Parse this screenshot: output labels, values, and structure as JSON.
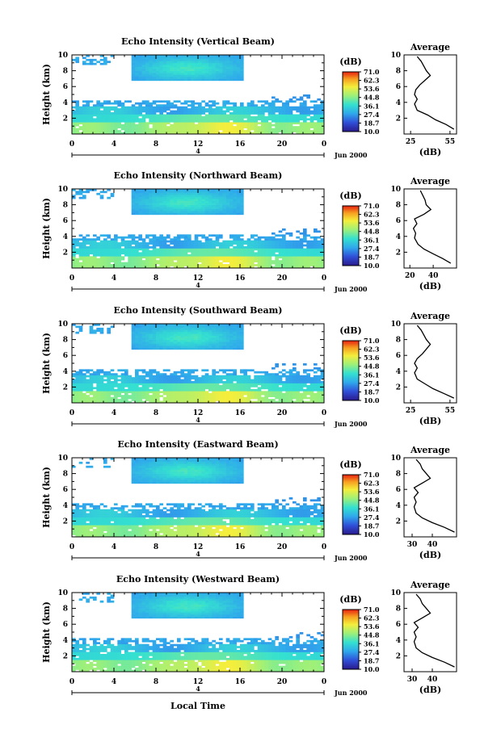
{
  "shared": {
    "ylabel": "Height (km)",
    "colorbar_unit": "(dB)",
    "colorbar_ticks": [
      "71.0",
      "62.3",
      "53.6",
      "44.8",
      "36.1",
      "27.4",
      "18.7",
      "10.0"
    ],
    "date_label": "Jun 2000",
    "day_marker": "4",
    "xlabel": "Local Time",
    "avg_title": "Average",
    "avg_xlabel": "(dB)"
  },
  "chart_data": [
    {
      "type": "heatmap",
      "title": "Echo Intensity (Vertical Beam)",
      "x_ticks": [
        "0",
        "4",
        "8",
        "12",
        "16",
        "20",
        "0"
      ],
      "y_ticks": [
        "2",
        "4",
        "6",
        "8",
        "10"
      ],
      "xlim": [
        0,
        24
      ],
      "ylim": [
        0,
        10
      ],
      "colorbar_range": [
        10.0,
        71.0
      ],
      "profile": {
        "title": "Average",
        "x_ticks": [
          "25",
          "55"
        ],
        "xlim": [
          20,
          60
        ],
        "y_ticks": [
          "2",
          "4",
          "6",
          "8",
          "10"
        ],
        "points": [
          [
            58,
            0.6
          ],
          [
            52,
            1.2
          ],
          [
            44,
            1.8
          ],
          [
            38,
            2.4
          ],
          [
            30,
            3.0
          ],
          [
            28,
            3.8
          ],
          [
            30,
            4.4
          ],
          [
            28,
            5.0
          ],
          [
            29,
            5.6
          ],
          [
            32,
            6.2
          ],
          [
            36,
            6.8
          ],
          [
            40,
            7.4
          ],
          [
            37,
            8.0
          ],
          [
            35,
            8.6
          ],
          [
            33,
            9.2
          ],
          [
            30,
            9.8
          ]
        ]
      }
    },
    {
      "type": "heatmap",
      "title": "Echo Intensity (Northward Beam)",
      "x_ticks": [
        "0",
        "4",
        "8",
        "12",
        "16",
        "20",
        "0"
      ],
      "y_ticks": [
        "2",
        "4",
        "6",
        "8",
        "10"
      ],
      "xlim": [
        0,
        24
      ],
      "ylim": [
        0,
        10
      ],
      "colorbar_range": [
        10.0,
        71.0
      ],
      "profile": {
        "title": "Average",
        "x_ticks": [
          "20",
          "40"
        ],
        "xlim": [
          15,
          60
        ],
        "y_ticks": [
          "2",
          "4",
          "6",
          "8",
          "10"
        ],
        "points": [
          [
            55,
            0.6
          ],
          [
            48,
            1.2
          ],
          [
            40,
            1.8
          ],
          [
            32,
            2.4
          ],
          [
            27,
            3.0
          ],
          [
            24,
            3.8
          ],
          [
            25,
            4.4
          ],
          [
            23,
            5.0
          ],
          [
            26,
            5.6
          ],
          [
            24,
            6.2
          ],
          [
            32,
            6.8
          ],
          [
            38,
            7.4
          ],
          [
            34,
            8.0
          ],
          [
            33,
            8.6
          ],
          [
            31,
            9.2
          ],
          [
            29,
            9.8
          ]
        ]
      }
    },
    {
      "type": "heatmap",
      "title": "Echo Intensity (Southward Beam)",
      "x_ticks": [
        "0",
        "4",
        "8",
        "12",
        "16",
        "20",
        "0"
      ],
      "y_ticks": [
        "2",
        "4",
        "6",
        "8",
        "10"
      ],
      "xlim": [
        0,
        24
      ],
      "ylim": [
        0,
        10
      ],
      "colorbar_range": [
        10.0,
        71.0
      ],
      "profile": {
        "title": "Average",
        "x_ticks": [
          "25",
          "55"
        ],
        "xlim": [
          20,
          60
        ],
        "y_ticks": [
          "2",
          "4",
          "6",
          "8",
          "10"
        ],
        "points": [
          [
            58,
            0.6
          ],
          [
            50,
            1.2
          ],
          [
            42,
            1.8
          ],
          [
            36,
            2.4
          ],
          [
            30,
            3.0
          ],
          [
            28,
            3.8
          ],
          [
            30,
            4.4
          ],
          [
            28,
            5.0
          ],
          [
            30,
            5.6
          ],
          [
            34,
            6.2
          ],
          [
            37,
            6.8
          ],
          [
            40,
            7.4
          ],
          [
            37,
            8.0
          ],
          [
            35,
            8.6
          ],
          [
            33,
            9.2
          ],
          [
            30,
            9.8
          ]
        ]
      }
    },
    {
      "type": "heatmap",
      "title": "Echo Intensity (Eastward Beam)",
      "x_ticks": [
        "0",
        "4",
        "8",
        "12",
        "16",
        "20",
        "0"
      ],
      "y_ticks": [
        "2",
        "4",
        "6",
        "8",
        "10"
      ],
      "xlim": [
        0,
        24
      ],
      "ylim": [
        0,
        10
      ],
      "colorbar_range": [
        10.0,
        71.0
      ],
      "profile": {
        "title": "Average",
        "x_ticks": [
          "30",
          "40"
        ],
        "xlim": [
          26,
          52
        ],
        "y_ticks": [
          "2",
          "4",
          "6",
          "8",
          "10"
        ],
        "points": [
          [
            51,
            0.6
          ],
          [
            46,
            1.2
          ],
          [
            40,
            1.8
          ],
          [
            35,
            2.4
          ],
          [
            32,
            3.0
          ],
          [
            31,
            3.8
          ],
          [
            32,
            4.4
          ],
          [
            31,
            5.0
          ],
          [
            33,
            5.6
          ],
          [
            31,
            6.2
          ],
          [
            35,
            6.8
          ],
          [
            39,
            7.4
          ],
          [
            37,
            8.0
          ],
          [
            35,
            8.6
          ],
          [
            34,
            9.2
          ],
          [
            32,
            9.8
          ]
        ]
      }
    },
    {
      "type": "heatmap",
      "title": "Echo Intensity (Westward Beam)",
      "x_ticks": [
        "0",
        "4",
        "8",
        "12",
        "16",
        "20",
        "0"
      ],
      "y_ticks": [
        "2",
        "4",
        "6",
        "8",
        "10"
      ],
      "xlim": [
        0,
        24
      ],
      "ylim": [
        0,
        10
      ],
      "colorbar_range": [
        10.0,
        71.0
      ],
      "profile": {
        "title": "Average",
        "x_ticks": [
          "30",
          "40"
        ],
        "xlim": [
          26,
          52
        ],
        "y_ticks": [
          "2",
          "4",
          "6",
          "8",
          "10"
        ],
        "points": [
          [
            51,
            0.6
          ],
          [
            46,
            1.2
          ],
          [
            40,
            1.8
          ],
          [
            35,
            2.4
          ],
          [
            32,
            3.0
          ],
          [
            31,
            3.8
          ],
          [
            32,
            4.4
          ],
          [
            31,
            5.0
          ],
          [
            33,
            5.6
          ],
          [
            31,
            6.2
          ],
          [
            35,
            6.8
          ],
          [
            39,
            7.4
          ],
          [
            37,
            8.0
          ],
          [
            35,
            8.6
          ],
          [
            34,
            9.2
          ],
          [
            32,
            9.8
          ]
        ]
      }
    }
  ]
}
